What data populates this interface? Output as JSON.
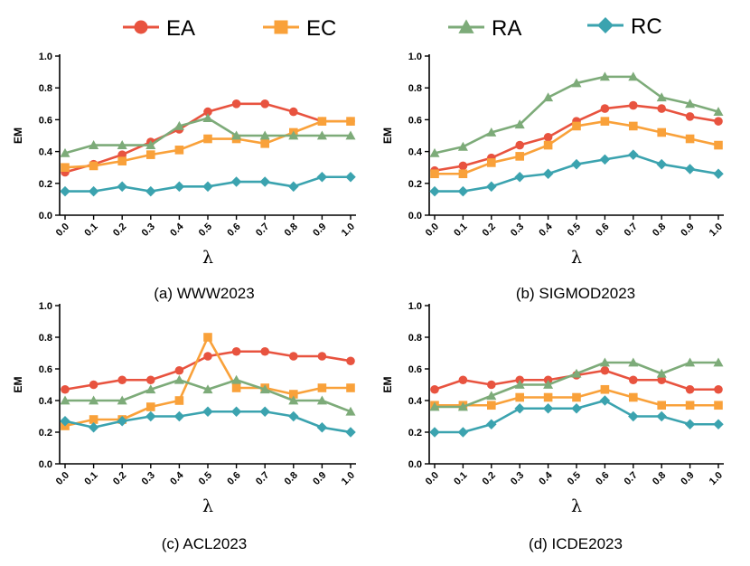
{
  "legend": [
    {
      "name": "EA",
      "marker": "circle",
      "color": "#E8533F"
    },
    {
      "name": "EC",
      "marker": "square",
      "color": "#F9A13A"
    },
    {
      "name": "RA",
      "marker": "triangle",
      "color": "#7DAB79"
    },
    {
      "name": "RC",
      "marker": "diamond",
      "color": "#3BA3AF"
    }
  ],
  "chart_data": [
    {
      "type": "line",
      "caption": "(a) WWW2023",
      "xlabel": "λ",
      "ylabel": "EM",
      "ylim": [
        0,
        1.0
      ],
      "yticks": [
        "0.0",
        "0.2",
        "0.4",
        "0.6",
        "0.8",
        "1.0"
      ],
      "categories": [
        "0.0",
        "0.1",
        "0.2",
        "0.3",
        "0.4",
        "0.5",
        "0.6",
        "0.7",
        "0.8",
        "0.9",
        "1.0"
      ],
      "series": [
        {
          "name": "EA",
          "values": [
            0.27,
            0.32,
            0.38,
            0.46,
            0.54,
            0.65,
            0.7,
            0.7,
            0.65,
            0.59,
            0.59
          ]
        },
        {
          "name": "EC",
          "values": [
            0.3,
            0.31,
            0.34,
            0.38,
            0.41,
            0.48,
            0.48,
            0.45,
            0.52,
            0.59,
            0.59
          ]
        },
        {
          "name": "RA",
          "values": [
            0.39,
            0.44,
            0.44,
            0.44,
            0.56,
            0.61,
            0.5,
            0.5,
            0.5,
            0.5,
            0.5
          ]
        },
        {
          "name": "RC",
          "values": [
            0.15,
            0.15,
            0.18,
            0.15,
            0.18,
            0.18,
            0.21,
            0.21,
            0.18,
            0.24,
            0.24
          ]
        }
      ]
    },
    {
      "type": "line",
      "caption": "(b) SIGMOD2023",
      "xlabel": "λ",
      "ylabel": "EM",
      "ylim": [
        0,
        1.0
      ],
      "yticks": [
        "0.0",
        "0.2",
        "0.4",
        "0.6",
        "0.8",
        "1.0"
      ],
      "categories": [
        "0.0",
        "0.1",
        "0.2",
        "0.3",
        "0.4",
        "0.5",
        "0.6",
        "0.7",
        "0.8",
        "0.9",
        "1.0"
      ],
      "series": [
        {
          "name": "EA",
          "values": [
            0.28,
            0.31,
            0.36,
            0.44,
            0.49,
            0.59,
            0.67,
            0.69,
            0.67,
            0.62,
            0.59
          ]
        },
        {
          "name": "EC",
          "values": [
            0.26,
            0.26,
            0.33,
            0.37,
            0.44,
            0.56,
            0.59,
            0.56,
            0.52,
            0.48,
            0.44
          ]
        },
        {
          "name": "RA",
          "values": [
            0.39,
            0.43,
            0.52,
            0.57,
            0.74,
            0.83,
            0.87,
            0.87,
            0.74,
            0.7,
            0.65
          ]
        },
        {
          "name": "RC",
          "values": [
            0.15,
            0.15,
            0.18,
            0.24,
            0.26,
            0.32,
            0.35,
            0.38,
            0.32,
            0.29,
            0.26
          ]
        }
      ]
    },
    {
      "type": "line",
      "caption": "(c) ACL2023",
      "xlabel": "λ",
      "ylabel": "EM",
      "ylim": [
        0,
        1.0
      ],
      "yticks": [
        "0.0",
        "0.2",
        "0.4",
        "0.6",
        "0.8",
        "1.0"
      ],
      "categories": [
        "0.0",
        "0.1",
        "0.2",
        "0.3",
        "0.4",
        "0.5",
        "0.6",
        "0.7",
        "0.8",
        "0.9",
        "1.0"
      ],
      "series": [
        {
          "name": "EA",
          "values": [
            0.47,
            0.5,
            0.53,
            0.53,
            0.59,
            0.68,
            0.71,
            0.71,
            0.68,
            0.68,
            0.65
          ]
        },
        {
          "name": "EC",
          "values": [
            0.24,
            0.28,
            0.28,
            0.36,
            0.4,
            0.8,
            0.48,
            0.48,
            0.44,
            0.48,
            0.48
          ]
        },
        {
          "name": "RA",
          "values": [
            0.4,
            0.4,
            0.4,
            0.47,
            0.53,
            0.47,
            0.53,
            0.47,
            0.4,
            0.4,
            0.33
          ]
        },
        {
          "name": "RC",
          "values": [
            0.27,
            0.23,
            0.27,
            0.3,
            0.3,
            0.33,
            0.33,
            0.33,
            0.3,
            0.23,
            0.2
          ]
        }
      ]
    },
    {
      "type": "line",
      "caption": "(d) ICDE2023",
      "xlabel": "λ",
      "ylabel": "EM",
      "ylim": [
        0,
        1.0
      ],
      "yticks": [
        "0.0",
        "0.2",
        "0.4",
        "0.6",
        "0.8",
        "1.0"
      ],
      "categories": [
        "0.0",
        "0.1",
        "0.2",
        "0.3",
        "0.4",
        "0.5",
        "0.6",
        "0.7",
        "0.8",
        "0.9",
        "1.0"
      ],
      "series": [
        {
          "name": "EA",
          "values": [
            0.47,
            0.53,
            0.5,
            0.53,
            0.53,
            0.56,
            0.59,
            0.53,
            0.53,
            0.47,
            0.47
          ]
        },
        {
          "name": "EC",
          "values": [
            0.37,
            0.37,
            0.37,
            0.42,
            0.42,
            0.42,
            0.47,
            0.42,
            0.37,
            0.37,
            0.37
          ]
        },
        {
          "name": "RA",
          "values": [
            0.36,
            0.36,
            0.43,
            0.5,
            0.5,
            0.57,
            0.64,
            0.64,
            0.57,
            0.64,
            0.64
          ]
        },
        {
          "name": "RC",
          "values": [
            0.2,
            0.2,
            0.25,
            0.35,
            0.35,
            0.35,
            0.4,
            0.3,
            0.3,
            0.25,
            0.25
          ]
        }
      ]
    }
  ]
}
